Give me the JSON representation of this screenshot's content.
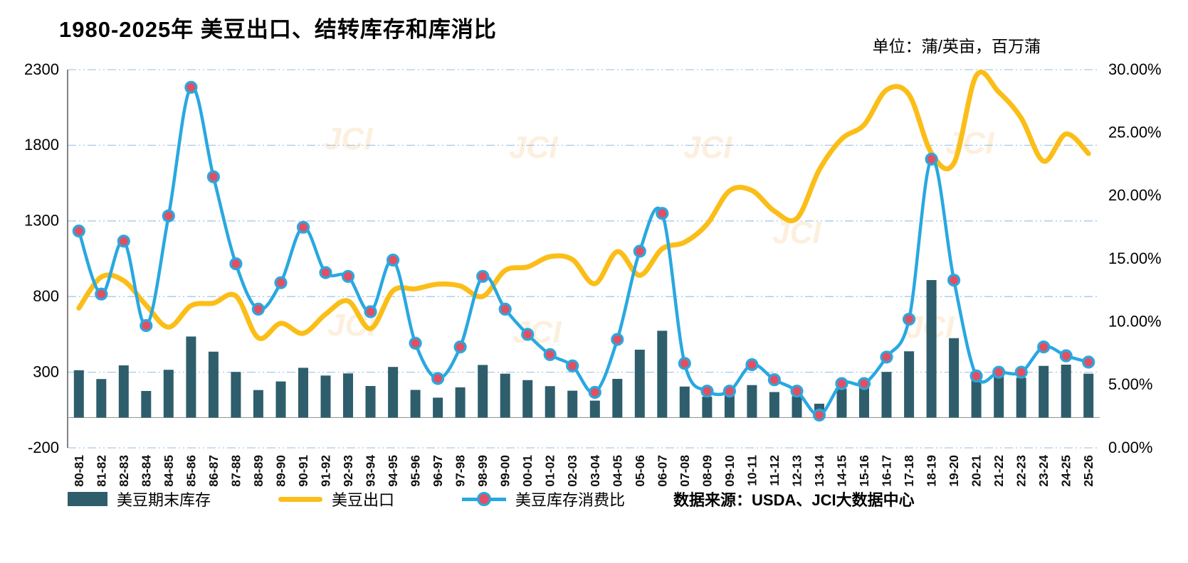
{
  "header": {
    "title": "1980-2025年 美豆出口、结转库存和库消比",
    "units": "单位：蒲/英亩，百万蒲"
  },
  "legend": {
    "stocks": "美豆期末库存",
    "exports": "美豆出口",
    "ratio": "美豆库存消费比",
    "source": "数据来源：USDA、JCI大数据中心"
  },
  "watermark": "JCI",
  "chart_data": {
    "type": "combo",
    "title": "1980-2025年 美豆出口、结转库存和库消比",
    "categories": [
      "80-81",
      "81-82",
      "82-83",
      "83-84",
      "84-85",
      "85-86",
      "86-87",
      "87-88",
      "88-89",
      "89-90",
      "90-91",
      "91-92",
      "92-93",
      "93-94",
      "94-95",
      "95-96",
      "96-97",
      "97-98",
      "98-99",
      "99-00",
      "00-01",
      "01-02",
      "02-03",
      "03-04",
      "04-05",
      "05-06",
      "06-07",
      "07-08",
      "08-09",
      "09-10",
      "10-11",
      "11-12",
      "12-13",
      "13-14",
      "14-15",
      "15-16",
      "16-17",
      "17-18",
      "18-19",
      "19-20",
      "20-21",
      "21-22",
      "22-23",
      "23-24",
      "24-25",
      "25-26"
    ],
    "series": [
      {
        "name": "美豆期末库存",
        "type": "bar",
        "axis": "left",
        "color": "#2E5E6C",
        "values": [
          313,
          255,
          345,
          176,
          316,
          536,
          436,
          302,
          182,
          239,
          329,
          278,
          292,
          209,
          335,
          183,
          132,
          200,
          348,
          290,
          248,
          208,
          178,
          112,
          256,
          449,
          574,
          205,
          138,
          151,
          215,
          169,
          141,
          92,
          191,
          197,
          302,
          438,
          909,
          525,
          257,
          274,
          264,
          342,
          350,
          290
        ]
      },
      {
        "name": "美豆出口",
        "type": "line",
        "axis": "left",
        "color": "#FBBE18",
        "values": [
          724,
          929,
          905,
          743,
          598,
          740,
          757,
          804,
          527,
          623,
          557,
          684,
          771,
          588,
          838,
          851,
          882,
          870,
          801,
          973,
          996,
          1064,
          1045,
          885,
          1097,
          940,
          1116,
          1159,
          1279,
          1499,
          1501,
          1365,
          1317,
          1638,
          1842,
          1936,
          2166,
          2134,
          1748,
          1682,
          2261,
          2152,
          1980,
          1695,
          1875,
          1745
        ]
      },
      {
        "name": "美豆库存消费比",
        "type": "line",
        "axis": "right",
        "color": "#29A8E0",
        "marker_fill": "#E14F63",
        "values": [
          17.2,
          12.2,
          16.4,
          9.7,
          18.4,
          28.6,
          21.5,
          14.6,
          11.0,
          13.1,
          17.5,
          13.9,
          13.6,
          10.8,
          14.9,
          8.3,
          5.5,
          8.0,
          13.6,
          11.0,
          9.0,
          7.4,
          6.5,
          4.4,
          8.6,
          15.6,
          18.6,
          6.7,
          4.5,
          4.5,
          6.6,
          5.4,
          4.5,
          2.6,
          5.1,
          5.1,
          7.2,
          10.2,
          22.9,
          13.3,
          5.7,
          6.0,
          6.0,
          8.0,
          7.3,
          6.8
        ]
      }
    ],
    "left_axis": {
      "min": -200,
      "max": 2300,
      "ticks": [
        2300,
        1800,
        1300,
        800,
        300,
        -200
      ]
    },
    "right_axis": {
      "min": 0,
      "max": 30,
      "tick_values": [
        0,
        5,
        10,
        15,
        20,
        25,
        30
      ],
      "tick_labels": [
        "0.00%",
        "5.00%",
        "10.00%",
        "15.00%",
        "20.00%",
        "25.00%",
        "30.00%"
      ]
    },
    "grid": true,
    "legend_position": "bottom"
  }
}
